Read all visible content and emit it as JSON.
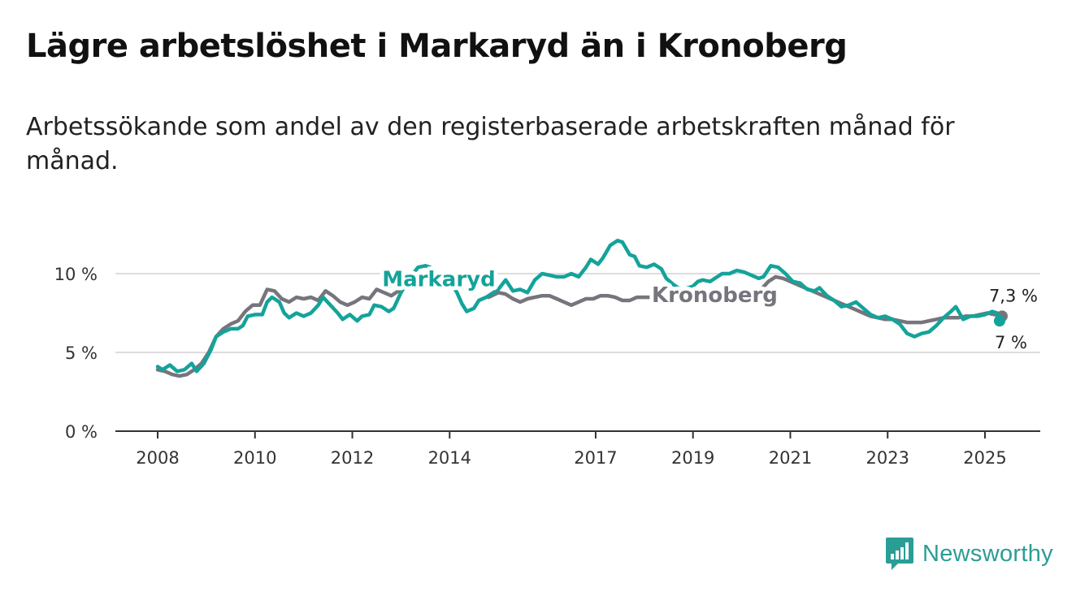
{
  "title": "Lägre arbetslöshet i Markaryd än i Kronoberg",
  "subtitle": "Arbetssökande som andel av den registerbaserade arbetskraften månad för månad.",
  "brand": {
    "name": "Newsworthy",
    "color": "#2a9d95",
    "icon": "bar-chart-logo-icon"
  },
  "colors": {
    "markaryd": "#14a39a",
    "kronoberg": "#76747c",
    "grid": "#dddddd",
    "axis": "#333333"
  },
  "chart_data": {
    "type": "line",
    "ylim": [
      0,
      12.3
    ],
    "xlim": [
      2007.2,
      2026.1
    ],
    "yticks": [
      0,
      5,
      10
    ],
    "ytick_labels": [
      "0 %",
      "5 %",
      "10 %"
    ],
    "xticks": [
      2008,
      2010,
      2012,
      2014,
      2017,
      2019,
      2021,
      2023,
      2025
    ],
    "xtick_labels": [
      "2008",
      "2010",
      "2012",
      "2014",
      "2017",
      "2019",
      "2021",
      "2023",
      "2025"
    ],
    "grid": true,
    "series": [
      {
        "name": "Markaryd",
        "color_key": "markaryd",
        "label_at": [
          2013.3,
          9.2
        ],
        "end_value_label": "7 %",
        "points": [
          [
            2008.0,
            4.1
          ],
          [
            2008.1,
            3.9
          ],
          [
            2008.25,
            4.2
          ],
          [
            2008.4,
            3.8
          ],
          [
            2008.55,
            3.9
          ],
          [
            2008.7,
            4.3
          ],
          [
            2008.8,
            3.8
          ],
          [
            2008.95,
            4.3
          ],
          [
            2009.1,
            5.2
          ],
          [
            2009.2,
            6.0
          ],
          [
            2009.35,
            6.3
          ],
          [
            2009.5,
            6.5
          ],
          [
            2009.65,
            6.5
          ],
          [
            2009.75,
            6.7
          ],
          [
            2009.85,
            7.3
          ],
          [
            2010.0,
            7.4
          ],
          [
            2010.15,
            7.4
          ],
          [
            2010.25,
            8.2
          ],
          [
            2010.35,
            8.5
          ],
          [
            2010.5,
            8.2
          ],
          [
            2010.6,
            7.5
          ],
          [
            2010.7,
            7.2
          ],
          [
            2010.85,
            7.5
          ],
          [
            2011.0,
            7.3
          ],
          [
            2011.15,
            7.5
          ],
          [
            2011.3,
            8.0
          ],
          [
            2011.4,
            8.5
          ],
          [
            2011.55,
            8.0
          ],
          [
            2011.7,
            7.5
          ],
          [
            2011.8,
            7.1
          ],
          [
            2011.95,
            7.4
          ],
          [
            2012.1,
            7.0
          ],
          [
            2012.2,
            7.3
          ],
          [
            2012.35,
            7.4
          ],
          [
            2012.45,
            8.0
          ],
          [
            2012.6,
            7.9
          ],
          [
            2012.75,
            7.6
          ],
          [
            2012.85,
            7.8
          ],
          [
            2013.0,
            8.8
          ],
          [
            2013.2,
            9.8
          ],
          [
            2013.35,
            10.4
          ],
          [
            2013.5,
            10.5
          ],
          [
            2013.6,
            10.4
          ],
          [
            2013.75,
            9.9
          ],
          [
            2013.85,
            9.7
          ],
          [
            2014.0,
            9.5
          ],
          [
            2014.15,
            8.8
          ],
          [
            2014.25,
            8.1
          ],
          [
            2014.35,
            7.6
          ],
          [
            2014.5,
            7.8
          ],
          [
            2014.6,
            8.3
          ],
          [
            2014.75,
            8.5
          ],
          [
            2015.0,
            9.0
          ],
          [
            2015.15,
            9.6
          ],
          [
            2015.3,
            8.9
          ],
          [
            2015.45,
            9.0
          ],
          [
            2015.6,
            8.8
          ],
          [
            2015.75,
            9.6
          ],
          [
            2015.9,
            10.0
          ],
          [
            2016.05,
            9.9
          ],
          [
            2016.2,
            9.8
          ],
          [
            2016.35,
            9.8
          ],
          [
            2016.5,
            10.0
          ],
          [
            2016.65,
            9.8
          ],
          [
            2016.8,
            10.4
          ],
          [
            2016.9,
            10.9
          ],
          [
            2017.05,
            10.6
          ],
          [
            2017.15,
            11.0
          ],
          [
            2017.3,
            11.8
          ],
          [
            2017.45,
            12.1
          ],
          [
            2017.55,
            12.0
          ],
          [
            2017.7,
            11.2
          ],
          [
            2017.8,
            11.1
          ],
          [
            2017.9,
            10.5
          ],
          [
            2018.05,
            10.4
          ],
          [
            2018.2,
            10.6
          ],
          [
            2018.35,
            10.3
          ],
          [
            2018.45,
            9.7
          ],
          [
            2018.6,
            9.3
          ],
          [
            2018.75,
            9.0
          ],
          [
            2018.9,
            9.1
          ],
          [
            2019.0,
            9.2
          ],
          [
            2019.1,
            9.5
          ],
          [
            2019.2,
            9.6
          ],
          [
            2019.35,
            9.5
          ],
          [
            2019.45,
            9.7
          ],
          [
            2019.6,
            10.0
          ],
          [
            2019.75,
            10.0
          ],
          [
            2019.9,
            10.2
          ],
          [
            2020.05,
            10.1
          ],
          [
            2020.2,
            9.9
          ],
          [
            2020.35,
            9.7
          ],
          [
            2020.45,
            9.8
          ],
          [
            2020.6,
            10.5
          ],
          [
            2020.75,
            10.4
          ],
          [
            2020.9,
            10.0
          ],
          [
            2021.05,
            9.5
          ],
          [
            2021.2,
            9.4
          ],
          [
            2021.35,
            9.0
          ],
          [
            2021.5,
            8.9
          ],
          [
            2021.6,
            9.1
          ],
          [
            2021.75,
            8.6
          ],
          [
            2021.9,
            8.3
          ],
          [
            2022.05,
            7.9
          ],
          [
            2022.2,
            8.0
          ],
          [
            2022.35,
            8.2
          ],
          [
            2022.5,
            7.8
          ],
          [
            2022.65,
            7.4
          ],
          [
            2022.8,
            7.2
          ],
          [
            2022.95,
            7.3
          ],
          [
            2023.1,
            7.1
          ],
          [
            2023.25,
            6.8
          ],
          [
            2023.4,
            6.2
          ],
          [
            2023.55,
            6.0
          ],
          [
            2023.7,
            6.2
          ],
          [
            2023.85,
            6.3
          ],
          [
            2024.0,
            6.7
          ],
          [
            2024.15,
            7.2
          ],
          [
            2024.3,
            7.6
          ],
          [
            2024.4,
            7.9
          ],
          [
            2024.55,
            7.1
          ],
          [
            2024.7,
            7.3
          ],
          [
            2024.85,
            7.3
          ],
          [
            2025.0,
            7.4
          ],
          [
            2025.15,
            7.6
          ],
          [
            2025.25,
            7.5
          ],
          [
            2025.3,
            7.0
          ]
        ]
      },
      {
        "name": "Kronoberg",
        "color_key": "kronoberg",
        "label_at": [
          2018.15,
          8.2
        ],
        "end_value_label": "7,3 %",
        "points": [
          [
            2008.0,
            3.9
          ],
          [
            2008.15,
            3.8
          ],
          [
            2008.3,
            3.6
          ],
          [
            2008.45,
            3.5
          ],
          [
            2008.6,
            3.6
          ],
          [
            2008.75,
            3.9
          ],
          [
            2008.9,
            4.3
          ],
          [
            2009.05,
            5.0
          ],
          [
            2009.2,
            6.0
          ],
          [
            2009.35,
            6.5
          ],
          [
            2009.5,
            6.8
          ],
          [
            2009.65,
            7.0
          ],
          [
            2009.8,
            7.6
          ],
          [
            2009.95,
            8.0
          ],
          [
            2010.1,
            8.0
          ],
          [
            2010.25,
            9.0
          ],
          [
            2010.4,
            8.9
          ],
          [
            2010.55,
            8.4
          ],
          [
            2010.7,
            8.2
          ],
          [
            2010.85,
            8.5
          ],
          [
            2011.0,
            8.4
          ],
          [
            2011.15,
            8.5
          ],
          [
            2011.3,
            8.3
          ],
          [
            2011.45,
            8.9
          ],
          [
            2011.6,
            8.6
          ],
          [
            2011.75,
            8.2
          ],
          [
            2011.9,
            8.0
          ],
          [
            2012.05,
            8.2
          ],
          [
            2012.2,
            8.5
          ],
          [
            2012.35,
            8.4
          ],
          [
            2012.5,
            9.0
          ],
          [
            2012.65,
            8.8
          ],
          [
            2012.8,
            8.6
          ],
          [
            2012.95,
            8.9
          ],
          [
            2014.8,
            8.5
          ],
          [
            2015.0,
            8.8
          ],
          [
            2015.15,
            8.7
          ],
          [
            2015.3,
            8.4
          ],
          [
            2015.45,
            8.2
          ],
          [
            2015.6,
            8.4
          ],
          [
            2015.75,
            8.5
          ],
          [
            2015.9,
            8.6
          ],
          [
            2016.05,
            8.6
          ],
          [
            2016.2,
            8.4
          ],
          [
            2016.35,
            8.2
          ],
          [
            2016.5,
            8.0
          ],
          [
            2016.65,
            8.2
          ],
          [
            2016.8,
            8.4
          ],
          [
            2016.95,
            8.4
          ],
          [
            2017.1,
            8.6
          ],
          [
            2017.25,
            8.6
          ],
          [
            2017.4,
            8.5
          ],
          [
            2017.55,
            8.3
          ],
          [
            2017.7,
            8.3
          ],
          [
            2017.85,
            8.5
          ],
          [
            2018.0,
            8.5
          ],
          [
            2018.15,
            8.5
          ],
          [
            2020.4,
            9.0
          ],
          [
            2020.55,
            9.5
          ],
          [
            2020.7,
            9.8
          ],
          [
            2020.85,
            9.7
          ],
          [
            2021.0,
            9.5
          ],
          [
            2021.15,
            9.3
          ],
          [
            2021.3,
            9.1
          ],
          [
            2021.45,
            8.9
          ],
          [
            2021.6,
            8.7
          ],
          [
            2021.75,
            8.5
          ],
          [
            2021.9,
            8.3
          ],
          [
            2022.05,
            8.1
          ],
          [
            2022.2,
            7.9
          ],
          [
            2022.35,
            7.7
          ],
          [
            2022.5,
            7.5
          ],
          [
            2022.65,
            7.3
          ],
          [
            2022.8,
            7.2
          ],
          [
            2022.95,
            7.1
          ],
          [
            2023.1,
            7.1
          ],
          [
            2023.25,
            7.0
          ],
          [
            2023.4,
            6.9
          ],
          [
            2023.55,
            6.9
          ],
          [
            2023.7,
            6.9
          ],
          [
            2023.85,
            7.0
          ],
          [
            2024.0,
            7.1
          ],
          [
            2024.15,
            7.2
          ],
          [
            2024.3,
            7.2
          ],
          [
            2024.45,
            7.2
          ],
          [
            2024.6,
            7.3
          ],
          [
            2024.75,
            7.3
          ],
          [
            2024.9,
            7.4
          ],
          [
            2025.05,
            7.5
          ],
          [
            2025.2,
            7.4
          ],
          [
            2025.35,
            7.3
          ]
        ]
      }
    ]
  }
}
